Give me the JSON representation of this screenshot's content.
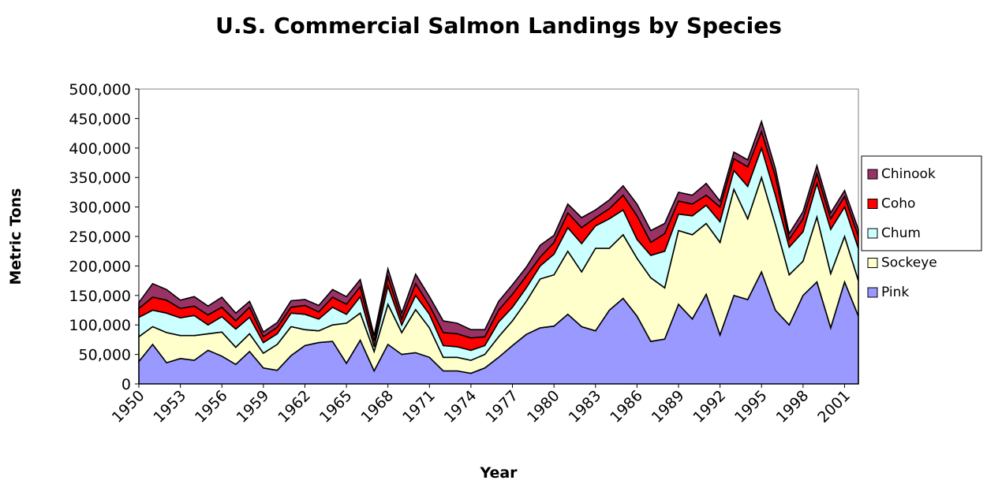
{
  "chart_data": {
    "type": "stacked_area",
    "title": "U.S. Commercial Salmon Landings by Species",
    "x_label": "Year",
    "y_label": "Metric Tons",
    "categories": [
      "1950",
      null,
      null,
      "1953",
      null,
      null,
      "1956",
      null,
      null,
      "1959",
      null,
      null,
      "1962",
      null,
      null,
      "1965",
      null,
      null,
      "1968",
      null,
      null,
      "1971",
      null,
      null,
      "1974",
      null,
      null,
      "1977",
      null,
      null,
      "1980",
      null,
      null,
      "1983",
      null,
      null,
      "1986",
      null,
      null,
      "1989",
      null,
      null,
      "1992",
      null,
      null,
      "1995",
      null,
      null,
      "1998",
      null,
      null,
      "2001",
      null
    ],
    "series": [
      {
        "name": "Pink",
        "color": "#9999ff",
        "values": [
          38000,
          67000,
          36000,
          43000,
          40000,
          57000,
          47000,
          33000,
          55000,
          27000,
          23000,
          48000,
          65000,
          70000,
          72000,
          35000,
          74000,
          22000,
          67000,
          50000,
          53000,
          45000,
          22000,
          22000,
          18000,
          27000,
          45000,
          65000,
          84000,
          95000,
          98000,
          118000,
          97000,
          90000,
          125000,
          145000,
          115000,
          72000,
          76000,
          135000,
          110000,
          152000,
          83000,
          150000,
          143000,
          190000,
          125000,
          100000,
          150000,
          173000,
          95000,
          173000,
          115000
        ]
      },
      {
        "name": "Sockeye",
        "color": "#ffffcc",
        "values": [
          42000,
          30000,
          51000,
          39000,
          42000,
          28000,
          41000,
          29000,
          30000,
          25000,
          44000,
          49000,
          27000,
          20000,
          28000,
          68000,
          46000,
          33000,
          68000,
          37000,
          73000,
          50000,
          23000,
          23000,
          22000,
          23000,
          35000,
          42000,
          56000,
          83000,
          87000,
          107000,
          93000,
          140000,
          105000,
          108000,
          98000,
          108000,
          87000,
          125000,
          143000,
          120000,
          157000,
          180000,
          137000,
          160000,
          145000,
          85000,
          58000,
          110000,
          92000,
          77000,
          60000
        ]
      },
      {
        "name": "Chum",
        "color": "#ccffff",
        "values": [
          33000,
          28000,
          33000,
          30000,
          34000,
          15000,
          26000,
          31000,
          28000,
          18000,
          18000,
          23000,
          26000,
          20000,
          30000,
          15000,
          28000,
          8000,
          31000,
          13000,
          24000,
          23000,
          20000,
          18000,
          17000,
          15000,
          25000,
          23000,
          23000,
          22000,
          35000,
          40000,
          48000,
          38000,
          50000,
          42000,
          32000,
          38000,
          62000,
          28000,
          32000,
          31000,
          35000,
          32000,
          55000,
          50000,
          50000,
          47000,
          50000,
          57000,
          75000,
          50000,
          55000
        ]
      },
      {
        "name": "Coho",
        "color": "#ff0000",
        "values": [
          15000,
          22000,
          22000,
          16000,
          16000,
          17000,
          16000,
          14000,
          17000,
          10000,
          11000,
          10000,
          15000,
          12000,
          17000,
          17000,
          17000,
          10000,
          16000,
          10000,
          20000,
          15000,
          22000,
          22000,
          21000,
          15000,
          20000,
          22000,
          20000,
          15000,
          20000,
          25000,
          27000,
          14000,
          17000,
          25000,
          40000,
          22000,
          30000,
          22000,
          20000,
          17000,
          25000,
          20000,
          33000,
          28000,
          32000,
          13000,
          22000,
          17000,
          18000,
          18000,
          20000
        ]
      },
      {
        "name": "Chinook",
        "color": "#993366",
        "values": [
          10000,
          23000,
          18000,
          14000,
          16000,
          15000,
          17000,
          13000,
          10000,
          8000,
          8000,
          11000,
          10000,
          11000,
          13000,
          13000,
          12000,
          9000,
          13000,
          10000,
          16000,
          15000,
          20000,
          18000,
          14000,
          12000,
          15000,
          16000,
          15000,
          20000,
          12000,
          15000,
          17000,
          13000,
          15000,
          16000,
          20000,
          20000,
          17000,
          15000,
          15000,
          20000,
          10000,
          11000,
          12000,
          17000,
          13000,
          10000,
          12000,
          13000,
          10000,
          10000,
          12000
        ]
      }
    ],
    "ylim": [
      0,
      500000
    ],
    "yticks": [
      0,
      {
        "value": 50000,
        "label": "50,000"
      },
      {
        "value": 100000,
        "label": "100,000"
      },
      {
        "value": 150000,
        "label": "150,000"
      },
      {
        "value": 200000,
        "label": "200,000"
      },
      {
        "value": 250000,
        "label": "250,000"
      },
      {
        "value": 300000,
        "label": "300,000"
      },
      {
        "value": 350000,
        "label": "350,000"
      },
      {
        "value": 400000,
        "label": "400,000"
      },
      {
        "value": 450000,
        "label": "450,000"
      },
      {
        "value": 500000,
        "label": "500,000"
      }
    ],
    "legend": "right"
  }
}
